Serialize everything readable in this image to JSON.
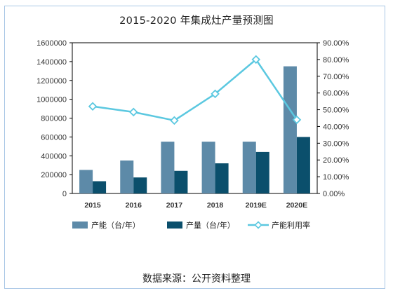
{
  "chart_data": {
    "type": "bar",
    "title": "2015-2020 年集成灶产量预测图",
    "categories": [
      "2015",
      "2016",
      "2017",
      "2018",
      "2019E",
      "2020E"
    ],
    "series": [
      {
        "name": "产能（台/年）",
        "type": "bar",
        "axis": "left",
        "color": "#5d8aa8",
        "values": [
          250000,
          350000,
          550000,
          550000,
          550000,
          1350000
        ]
      },
      {
        "name": "产量（台/年）",
        "type": "bar",
        "axis": "left",
        "color": "#0b4f6c",
        "values": [
          130000,
          170000,
          240000,
          320000,
          440000,
          600000
        ]
      },
      {
        "name": "产能利用率",
        "type": "line",
        "axis": "right",
        "color": "#5bc8e0",
        "values": [
          0.52,
          0.486,
          0.436,
          0.595,
          0.8,
          0.44
        ]
      }
    ],
    "y_left": {
      "min": 0,
      "max": 1600000,
      "ticks": [
        "0",
        "200000",
        "400000",
        "600000",
        "800000",
        "1000000",
        "1200000",
        "1400000",
        "1600000"
      ]
    },
    "y_right": {
      "min": 0,
      "max": 0.9,
      "ticks": [
        "0.00%",
        "10.00%",
        "20.00%",
        "30.00%",
        "40.00%",
        "50.00%",
        "60.00%",
        "70.00%",
        "80.00%",
        "90.00%"
      ]
    },
    "grid": false,
    "legend_position": "bottom",
    "source_note": "数据来源：公开资料整理"
  }
}
